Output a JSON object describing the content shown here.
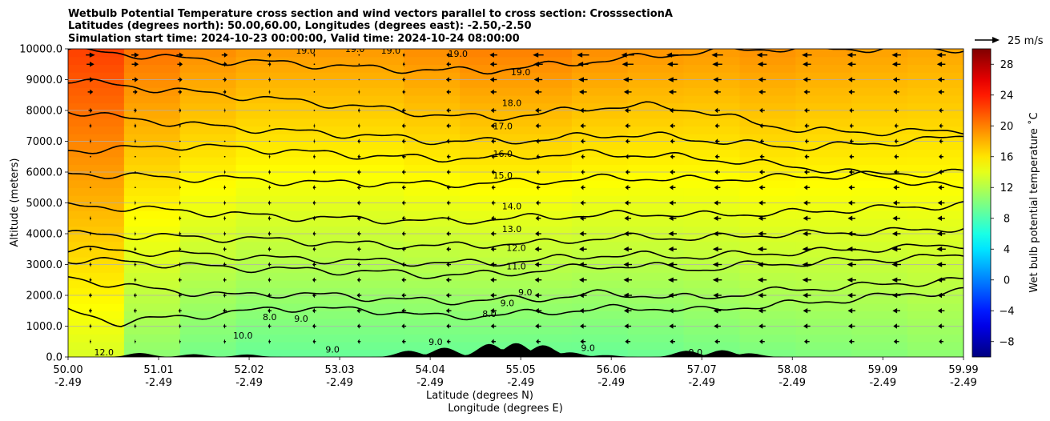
{
  "chart_data": {
    "type": "heatmap",
    "title_lines": [
      "Wetbulb Potential Temperature cross section and wind vectors parallel to cross section: CrosssectionA",
      "Latitudes (degrees north): 50.00,60.00, Longitudes (degrees east): -2.50,-2.50",
      "Simulation start time: 2024-10-23 00:00:00, Valid time: 2024-10-24 08:00:00"
    ],
    "xlabel": "Latitude (degrees N)",
    "xlabel2": "Longitude (degrees E)",
    "ylabel": "Altitude (meters)",
    "xlim": [
      50.0,
      59.99
    ],
    "ylim": [
      0,
      10000
    ],
    "x_ticks": [
      {
        "lat": "50.00",
        "lon": "-2.49",
        "value": 50.0
      },
      {
        "lat": "51.01",
        "lon": "-2.49",
        "value": 51.01
      },
      {
        "lat": "52.02",
        "lon": "-2.49",
        "value": 52.02
      },
      {
        "lat": "53.03",
        "lon": "-2.49",
        "value": 53.03
      },
      {
        "lat": "54.04",
        "lon": "-2.49",
        "value": 54.04
      },
      {
        "lat": "55.05",
        "lon": "-2.49",
        "value": 55.05
      },
      {
        "lat": "56.06",
        "lon": "-2.49",
        "value": 56.06
      },
      {
        "lat": "57.07",
        "lon": "-2.49",
        "value": 57.07
      },
      {
        "lat": "58.08",
        "lon": "-2.49",
        "value": 58.08
      },
      {
        "lat": "59.09",
        "lon": "-2.49",
        "value": 59.09
      },
      {
        "lat": "59.99",
        "lon": "-2.49",
        "value": 59.99
      }
    ],
    "y_ticks": [
      {
        "label": "0.0",
        "value": 0
      },
      {
        "label": "1000.0",
        "value": 1000
      },
      {
        "label": "2000.0",
        "value": 2000
      },
      {
        "label": "3000.0",
        "value": 3000
      },
      {
        "label": "4000.0",
        "value": 4000
      },
      {
        "label": "5000.0",
        "value": 5000
      },
      {
        "label": "6000.0",
        "value": 6000
      },
      {
        "label": "7000.0",
        "value": 7000
      },
      {
        "label": "8000.0",
        "value": 8000
      },
      {
        "label": "9000.0",
        "value": 9000
      },
      {
        "label": "10000.0",
        "value": 10000
      }
    ],
    "grid": "horizontal",
    "colorbar": {
      "label": "Wet bulb potential temperature $^\\circ$C",
      "label_display": "Wet bulb potential temperature ˚C",
      "range": [
        -10,
        30
      ],
      "ticks": [
        {
          "label": "−8",
          "value": -8
        },
        {
          "label": "−4",
          "value": -4
        },
        {
          "label": "0",
          "value": 0
        },
        {
          "label": "4",
          "value": 4
        },
        {
          "label": "8",
          "value": 8
        },
        {
          "label": "12",
          "value": 12
        },
        {
          "label": "16",
          "value": 16
        },
        {
          "label": "20",
          "value": 20
        },
        {
          "label": "24",
          "value": 24
        },
        {
          "label": "28",
          "value": 28
        }
      ],
      "colormap": "jet"
    },
    "quiver_key": {
      "label": "25 m/s",
      "speed": 25
    },
    "contour_levels": [
      {
        "value": 8,
        "label": "8.0"
      },
      {
        "value": 9,
        "label": "9.0"
      },
      {
        "value": 10,
        "label": "10.0"
      },
      {
        "value": 11,
        "label": "11.0"
      },
      {
        "value": 12,
        "label": "12.0"
      },
      {
        "value": 13,
        "label": "13.0"
      },
      {
        "value": 14,
        "label": "14.0"
      },
      {
        "value": 15,
        "label": "15.0"
      },
      {
        "value": 16,
        "label": "16.0"
      },
      {
        "value": 17,
        "label": "17.0"
      },
      {
        "value": 18,
        "label": "18.0"
      },
      {
        "value": 19,
        "label": "19.0"
      }
    ],
    "contours": [
      {
        "level": 8,
        "alt": [
          1500,
          1100,
          1300,
          1400,
          1600,
          1550,
          1500,
          1300,
          1350,
          1450,
          1550,
          1600,
          1500,
          1650,
          1750,
          1900,
          2050,
          2150
        ]
      },
      {
        "level": 9,
        "alt": [
          2600,
          2300,
          2150,
          2000,
          2050,
          2000,
          1900,
          1800,
          1850,
          1900,
          2050,
          2000,
          1900,
          2100,
          2200,
          2300,
          2400,
          2500
        ]
      },
      {
        "level": 11,
        "alt": [
          3150,
          3100,
          3000,
          2900,
          2850,
          2800,
          2750,
          2650,
          2700,
          2800,
          2950,
          2950,
          2850,
          3000,
          3050,
          3150,
          3200,
          3300
        ]
      },
      {
        "level": 12,
        "alt": [
          3500,
          3450,
          3350,
          3300,
          3200,
          3150,
          3100,
          3050,
          3050,
          3150,
          3300,
          3300,
          3250,
          3350,
          3400,
          3500,
          3550,
          3650
        ]
      },
      {
        "level": 13,
        "alt": [
          4000,
          3950,
          3900,
          3850,
          3800,
          3700,
          3650,
          3600,
          3650,
          3700,
          3850,
          3900,
          3850,
          3950,
          4000,
          4050,
          4100,
          4200
        ]
      },
      {
        "level": 14,
        "alt": [
          4900,
          4850,
          4750,
          4650,
          4550,
          4500,
          4450,
          4400,
          4450,
          4550,
          4600,
          4650,
          4600,
          4650,
          4700,
          4800,
          4850,
          4950
        ]
      },
      {
        "level": 15,
        "alt": [
          5950,
          5900,
          5800,
          5800,
          5700,
          5650,
          5650,
          5600,
          5650,
          5700,
          5800,
          5800,
          5750,
          5800,
          5850,
          5900,
          5950,
          6000
        ]
      },
      {
        "level": 16,
        "alt": [
          6700,
          6750,
          6850,
          6800,
          6700,
          6600,
          6500,
          6450,
          6450,
          6550,
          6600,
          6550,
          6450,
          6300,
          6150,
          5950,
          5700,
          5450
        ]
      },
      {
        "level": 17,
        "alt": [
          8000,
          7750,
          7600,
          7450,
          7350,
          7250,
          7150,
          7000,
          7000,
          7050,
          7200,
          7200,
          7050,
          6900,
          6800,
          6900,
          7000,
          7150
        ]
      },
      {
        "level": 18,
        "alt": [
          9000,
          8800,
          8650,
          8500,
          8350,
          8200,
          8050,
          7850,
          7750,
          7900,
          8100,
          8150,
          8000,
          7600,
          7350,
          7300,
          7300,
          7350
        ]
      },
      {
        "level": 19,
        "alt": [
          9950,
          9850,
          9700,
          9600,
          9550,
          9450,
          9350,
          9300,
          9300,
          9450,
          9600,
          9750,
          9900,
          10000,
          10000,
          10000,
          10000,
          10000
        ]
      }
    ],
    "contour_label_marks": [
      {
        "label": "19.0",
        "lat": 52.65,
        "alt": 9950
      },
      {
        "label": "19.0",
        "lat": 53.2,
        "alt": 10000
      },
      {
        "label": "19.0",
        "lat": 53.6,
        "alt": 9950
      },
      {
        "label": "19.0",
        "lat": 54.35,
        "alt": 9850
      },
      {
        "label": "19.0",
        "lat": 55.05,
        "alt": 9250
      },
      {
        "label": "18.0",
        "lat": 54.95,
        "alt": 8250
      },
      {
        "label": "17.0",
        "lat": 54.85,
        "alt": 7500
      },
      {
        "label": "16.0",
        "lat": 54.85,
        "alt": 6600
      },
      {
        "label": "15.0",
        "lat": 54.85,
        "alt": 5900
      },
      {
        "label": "14.0",
        "lat": 54.95,
        "alt": 4900
      },
      {
        "label": "13.0",
        "lat": 54.95,
        "alt": 4150
      },
      {
        "label": "12.0",
        "lat": 55.0,
        "alt": 3550
      },
      {
        "label": "11.0",
        "lat": 55.0,
        "alt": 2950
      },
      {
        "label": "9.0",
        "lat": 55.1,
        "alt": 2100
      },
      {
        "label": "9.0",
        "lat": 54.9,
        "alt": 1750
      },
      {
        "label": "8.0",
        "lat": 54.7,
        "alt": 1400
      },
      {
        "label": "8.0",
        "lat": 52.25,
        "alt": 1300
      },
      {
        "label": "9.0",
        "lat": 52.6,
        "alt": 1250
      },
      {
        "label": "10.0",
        "lat": 51.95,
        "alt": 700
      },
      {
        "label": "12.0",
        "lat": 50.4,
        "alt": 150
      },
      {
        "label": "9.0",
        "lat": 54.1,
        "alt": 500
      },
      {
        "label": "9.0",
        "lat": 52.95,
        "alt": 250
      },
      {
        "label": "9.0",
        "lat": 55.8,
        "alt": 300
      },
      {
        "label": "9.0",
        "lat": 57.0,
        "alt": 150
      }
    ],
    "shading_field": {
      "surface": [
        13.5,
        10.5,
        9.5,
        9.0,
        9.0,
        9.0,
        9.0,
        9.0,
        9.0,
        9.0,
        9.2,
        9.5,
        9.8,
        10.0,
        10.2,
        10.5
      ],
      "lapse_per_km": [
        0.9,
        1.0,
        1.0,
        1.0,
        1.0,
        1.0,
        1.05,
        1.1,
        1.1,
        1.05,
        1.0,
        0.95,
        0.95,
        0.9,
        0.85,
        0.8
      ]
    },
    "wind_vectors": {
      "levels_m": [
        9800,
        9500,
        9000,
        8600,
        8000,
        7500,
        7000,
        6500,
        6000,
        5500,
        5000,
        4500,
        4000,
        3500,
        3000,
        2500,
        2000,
        1500,
        1000,
        500
      ],
      "u_by_level": [
        [
          12,
          10,
          9,
          8,
          5,
          2,
          0,
          -3,
          -6,
          -10,
          -14,
          -16,
          -17,
          -16,
          -15,
          -14,
          -13,
          -12,
          -12,
          -12
        ],
        [
          10,
          9,
          7,
          6,
          4,
          1,
          -1,
          -3,
          -6,
          -9,
          -12,
          -14,
          -15,
          -14,
          -13,
          -12,
          -11,
          -11,
          -11,
          -11
        ],
        [
          9,
          8,
          6,
          5,
          3,
          1,
          -1,
          -4,
          -7,
          -9,
          -11,
          -12,
          -12,
          -12,
          -11,
          -10,
          -10,
          -9,
          -9,
          -9
        ],
        [
          7,
          6,
          5,
          4,
          2,
          0,
          -2,
          -4,
          -6,
          -8,
          -9,
          -10,
          -10,
          -10,
          -9,
          -9,
          -8,
          -8,
          -8,
          -8
        ],
        [
          5,
          4,
          3,
          2,
          1,
          -1,
          -3,
          -5,
          -6,
          -7,
          -8,
          -8,
          -8,
          -8,
          -7,
          -7,
          -7,
          -6,
          -6,
          -6
        ],
        [
          3,
          3,
          2,
          1,
          0,
          -2,
          -3,
          -5,
          -6,
          -7,
          -7,
          -7,
          -7,
          -7,
          -6,
          -6,
          -6,
          -5,
          -5,
          -5
        ],
        [
          2,
          2,
          1,
          0,
          -1,
          -2,
          -4,
          -5,
          -6,
          -6,
          -6,
          -6,
          -6,
          -6,
          -6,
          -5,
          -5,
          -5,
          -5,
          -5
        ],
        [
          1,
          1,
          0,
          -1,
          -2,
          -3,
          -4,
          -5,
          -5,
          -5,
          -5,
          -5,
          -6,
          -6,
          -6,
          -6,
          -6,
          -6,
          -6,
          -6
        ],
        [
          0,
          0,
          -1,
          -2,
          -3,
          -4,
          -5,
          -5,
          -5,
          -5,
          -5,
          -5,
          -6,
          -7,
          -7,
          -7,
          -7,
          -7,
          -7,
          -7
        ],
        [
          -1,
          -1,
          -2,
          -3,
          -3,
          -4,
          -5,
          -5,
          -5,
          -5,
          -5,
          -6,
          -7,
          -8,
          -8,
          -8,
          -8,
          -8,
          -8,
          -8
        ],
        [
          -1,
          -2,
          -2,
          -3,
          -4,
          -4,
          -5,
          -5,
          -5,
          -5,
          -6,
          -7,
          -8,
          -9,
          -9,
          -9,
          -9,
          -9,
          -9,
          -9
        ],
        [
          -2,
          -2,
          -3,
          -3,
          -4,
          -4,
          -5,
          -5,
          -5,
          -6,
          -7,
          -8,
          -9,
          -10,
          -10,
          -10,
          -10,
          -10,
          -10,
          -10
        ],
        [
          -2,
          -2,
          -3,
          -3,
          -4,
          -4,
          -5,
          -5,
          -6,
          -7,
          -8,
          -9,
          -10,
          -11,
          -11,
          -11,
          -11,
          -11,
          -11,
          -11
        ],
        [
          -3,
          -3,
          -3,
          -4,
          -4,
          -4,
          -5,
          -5,
          -6,
          -7,
          -9,
          -10,
          -11,
          -11,
          -12,
          -12,
          -12,
          -12,
          -12,
          -12
        ],
        [
          -3,
          -3,
          -3,
          -4,
          -4,
          -5,
          -5,
          -6,
          -6,
          -8,
          -9,
          -10,
          -11,
          -12,
          -12,
          -12,
          -12,
          -12,
          -12,
          -12
        ],
        [
          -3,
          -3,
          -4,
          -4,
          -4,
          -5,
          -5,
          -6,
          -7,
          -8,
          -9,
          -10,
          -11,
          -12,
          -12,
          -12,
          -12,
          -12,
          -12,
          -11
        ],
        [
          -4,
          -4,
          -4,
          -4,
          -5,
          -5,
          -6,
          -6,
          -7,
          -8,
          -9,
          -10,
          -11,
          -11,
          -11,
          -11,
          -11,
          -11,
          -11,
          -10
        ],
        [
          -4,
          -4,
          -4,
          -5,
          -5,
          -5,
          -6,
          -6,
          -7,
          -8,
          -9,
          -9,
          -10,
          -10,
          -10,
          -10,
          -10,
          -10,
          -10,
          -9
        ],
        [
          -3,
          -3,
          -3,
          -4,
          -4,
          -5,
          -5,
          -6,
          -6,
          -7,
          -8,
          -8,
          -9,
          -9,
          -9,
          -9,
          -9,
          -9,
          -8,
          -8
        ],
        [
          -2,
          -2,
          -2,
          -3,
          -3,
          -4,
          -4,
          -5,
          -5,
          -6,
          -6,
          -7,
          -7,
          -7,
          -7,
          -7,
          -7,
          -7,
          -7,
          -6
        ]
      ]
    },
    "terrain_peaks": [
      {
        "lat": 50.8,
        "alt": 130
      },
      {
        "lat": 51.4,
        "alt": 90
      },
      {
        "lat": 52.0,
        "alt": 80
      },
      {
        "lat": 53.8,
        "alt": 200
      },
      {
        "lat": 54.2,
        "alt": 300
      },
      {
        "lat": 54.7,
        "alt": 420
      },
      {
        "lat": 55.0,
        "alt": 450
      },
      {
        "lat": 55.3,
        "alt": 380
      },
      {
        "lat": 55.6,
        "alt": 150
      },
      {
        "lat": 56.0,
        "alt": 60
      },
      {
        "lat": 56.9,
        "alt": 200
      },
      {
        "lat": 57.3,
        "alt": 220
      },
      {
        "lat": 57.6,
        "alt": 120
      }
    ]
  }
}
